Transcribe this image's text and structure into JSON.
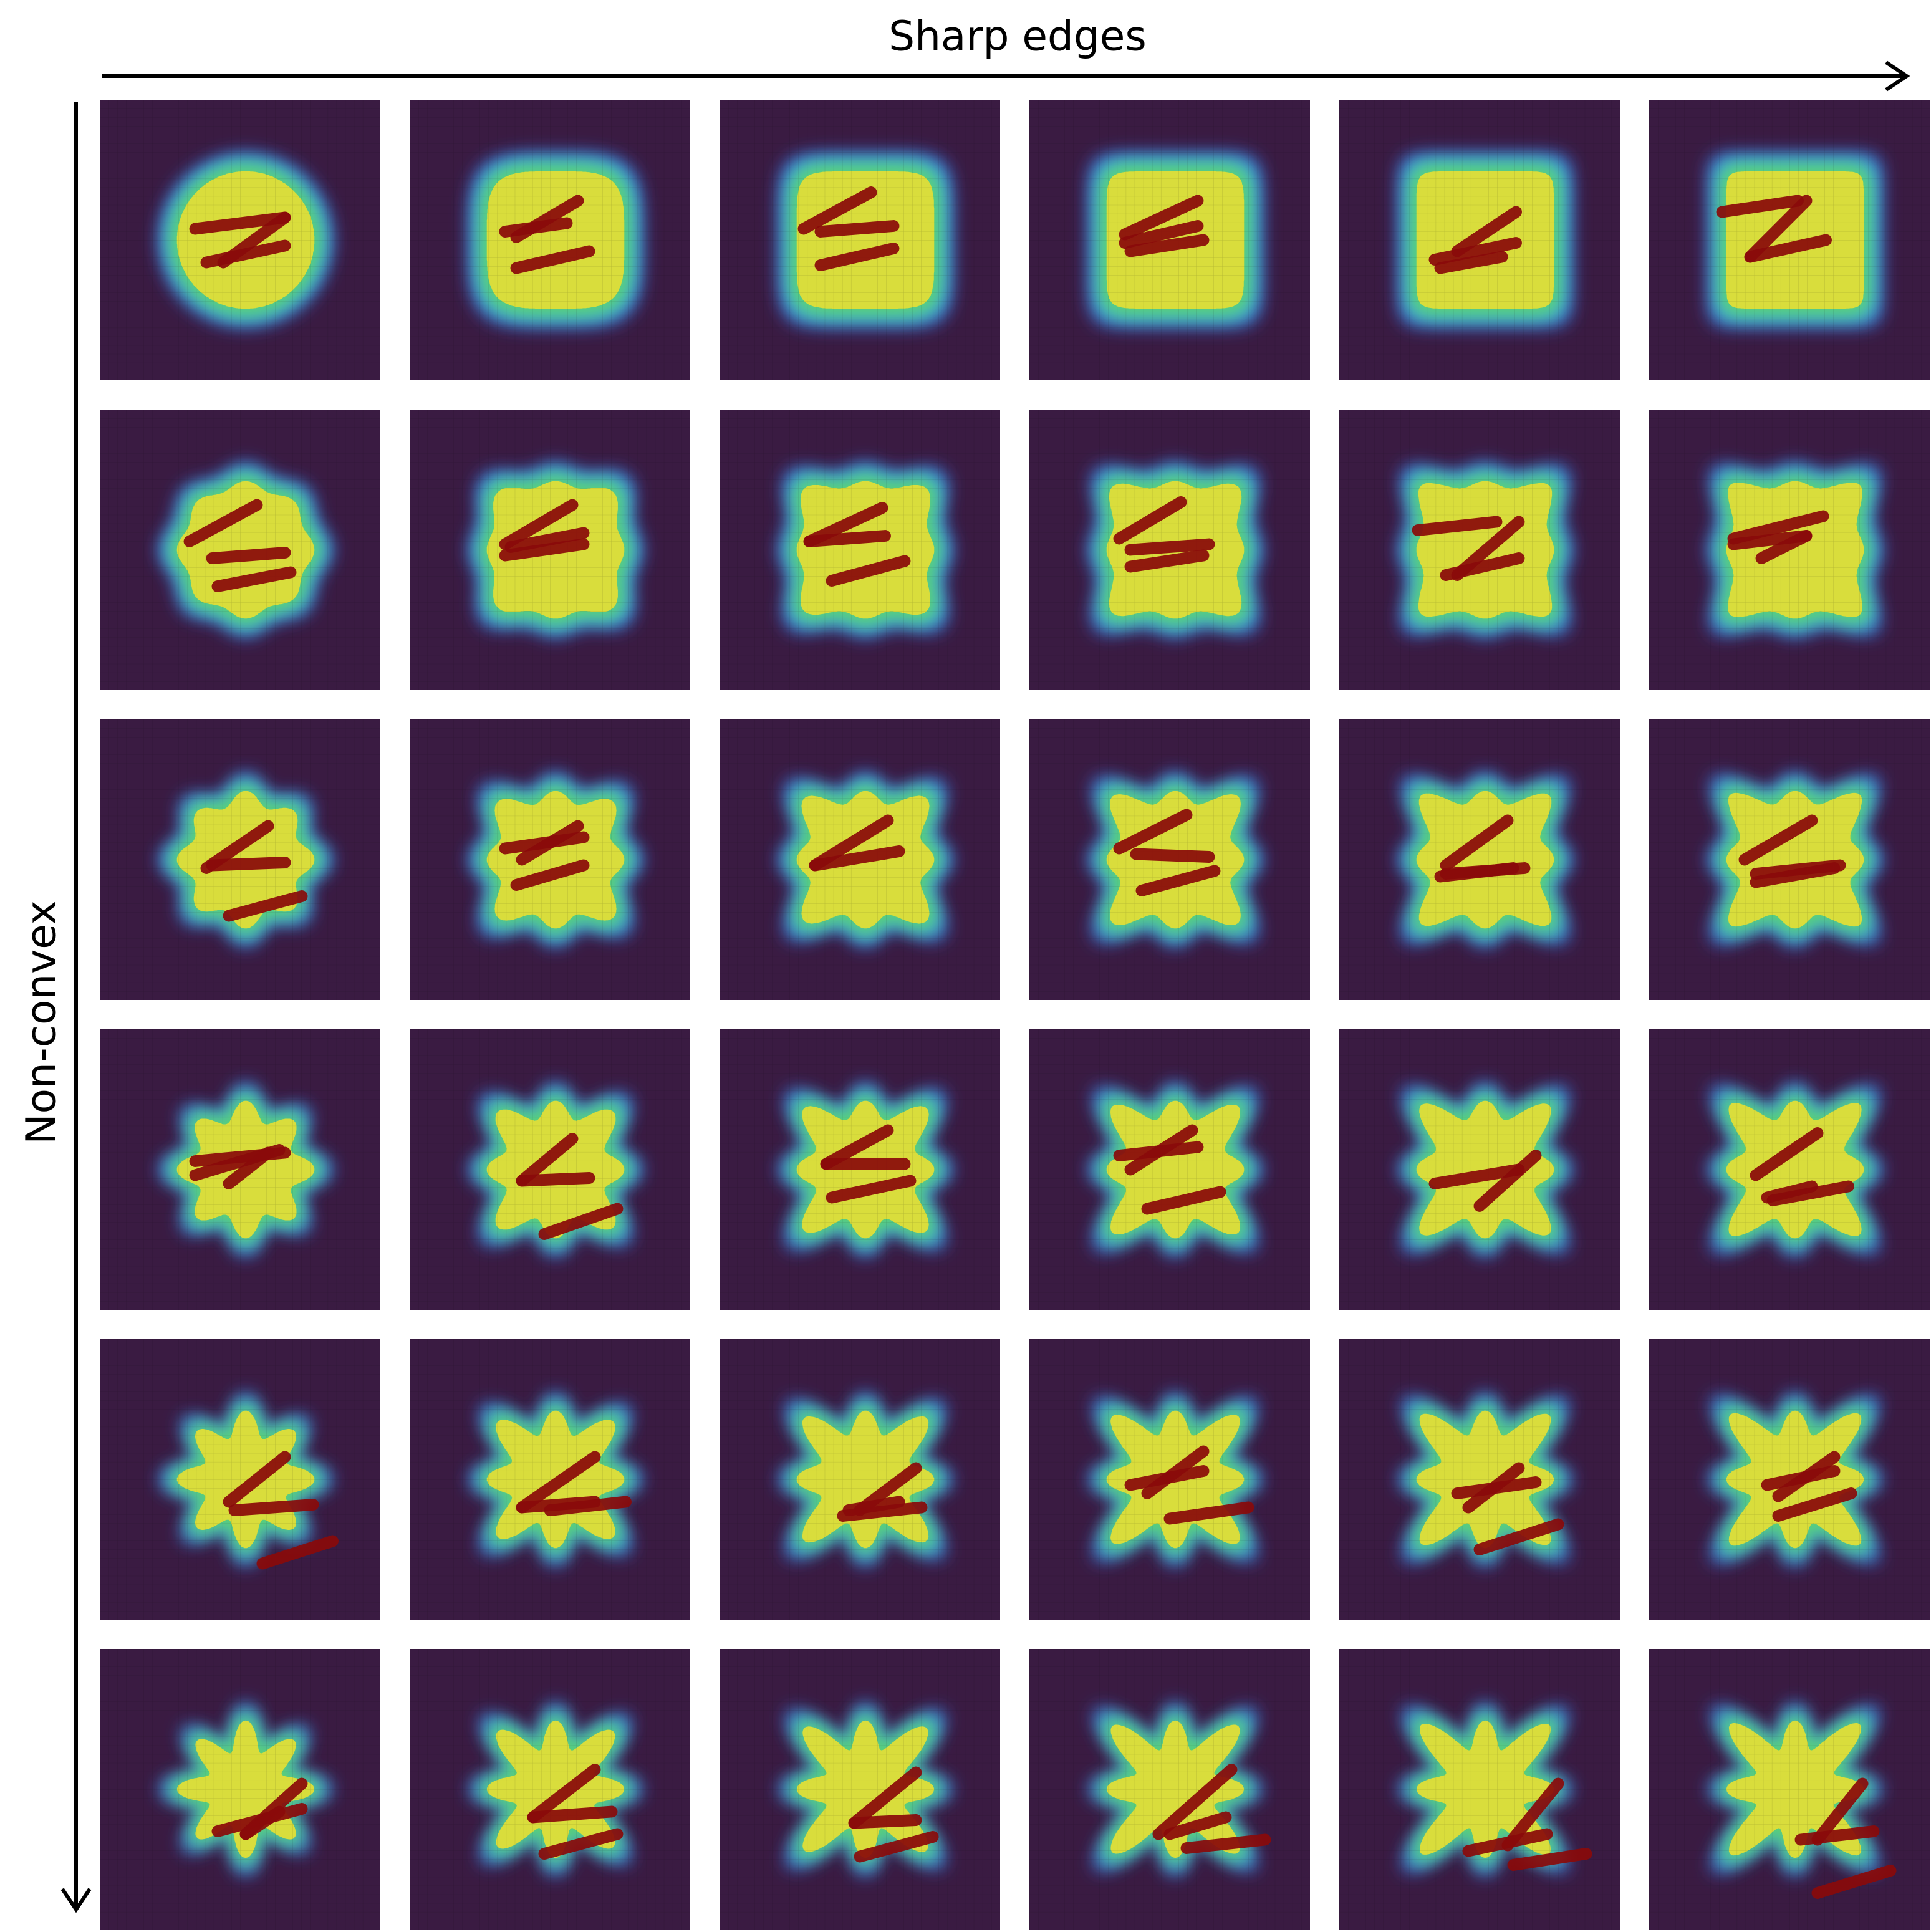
{
  "axes": {
    "x_label": "Sharp edges",
    "y_label": "Non-convex"
  },
  "colors": {
    "background": "#3a1b42",
    "grid_line": "#2a1230",
    "glow_blue": "#3a6bd8",
    "glow_cyan": "#3ec4cf",
    "glow_green": "#5fd16a",
    "shape_fill": "#d9dd3c",
    "shape_grid": "#a8a832",
    "stroke": "#8a0a0a",
    "axis": "#000000"
  },
  "grid": {
    "rows": 6,
    "columns": 6,
    "row_axis": "Non-convex",
    "column_axis": "Sharp edges"
  },
  "panels": [
    {
      "row": 0,
      "col": 0,
      "roughness": 0.0,
      "bumps": 0,
      "segments": [
        [
          0.34,
          0.46,
          0.66,
          0.42
        ],
        [
          0.66,
          0.42,
          0.44,
          0.58
        ],
        [
          0.38,
          0.58,
          0.66,
          0.52
        ]
      ]
    },
    {
      "row": 0,
      "col": 1,
      "roughness": 0.2,
      "bumps": 0,
      "segments": [
        [
          0.34,
          0.47,
          0.56,
          0.44
        ],
        [
          0.38,
          0.49,
          0.6,
          0.36
        ],
        [
          0.38,
          0.6,
          0.64,
          0.54
        ]
      ]
    },
    {
      "row": 0,
      "col": 2,
      "roughness": 0.4,
      "bumps": 0,
      "segments": [
        [
          0.3,
          0.46,
          0.54,
          0.33
        ],
        [
          0.36,
          0.47,
          0.62,
          0.45
        ],
        [
          0.36,
          0.59,
          0.62,
          0.53
        ]
      ]
    },
    {
      "row": 0,
      "col": 3,
      "roughness": 0.6,
      "bumps": 0,
      "segments": [
        [
          0.34,
          0.48,
          0.6,
          0.36
        ],
        [
          0.34,
          0.51,
          0.6,
          0.45
        ],
        [
          0.36,
          0.54,
          0.62,
          0.5
        ]
      ]
    },
    {
      "row": 0,
      "col": 4,
      "roughness": 0.8,
      "bumps": 0,
      "segments": [
        [
          0.34,
          0.57,
          0.63,
          0.51
        ],
        [
          0.42,
          0.54,
          0.63,
          0.4
        ],
        [
          0.36,
          0.6,
          0.58,
          0.56
        ]
      ]
    },
    {
      "row": 0,
      "col": 5,
      "roughness": 1.0,
      "bumps": 0,
      "segments": [
        [
          0.26,
          0.4,
          0.53,
          0.36
        ],
        [
          0.36,
          0.56,
          0.63,
          0.5
        ],
        [
          0.36,
          0.56,
          0.56,
          0.36
        ]
      ]
    },
    {
      "row": 1,
      "col": 0,
      "roughness": 0.0,
      "bumps": 1,
      "segments": [
        [
          0.32,
          0.47,
          0.56,
          0.34
        ],
        [
          0.4,
          0.53,
          0.66,
          0.51
        ],
        [
          0.42,
          0.63,
          0.68,
          0.58
        ]
      ]
    },
    {
      "row": 1,
      "col": 1,
      "roughness": 0.2,
      "bumps": 1,
      "segments": [
        [
          0.34,
          0.48,
          0.58,
          0.34
        ],
        [
          0.34,
          0.52,
          0.62,
          0.48
        ],
        [
          0.36,
          0.49,
          0.62,
          0.44
        ]
      ]
    },
    {
      "row": 1,
      "col": 2,
      "roughness": 0.4,
      "bumps": 1,
      "segments": [
        [
          0.32,
          0.47,
          0.58,
          0.35
        ],
        [
          0.32,
          0.47,
          0.59,
          0.45
        ],
        [
          0.4,
          0.61,
          0.66,
          0.54
        ]
      ]
    },
    {
      "row": 1,
      "col": 3,
      "roughness": 0.6,
      "bumps": 1,
      "segments": [
        [
          0.32,
          0.46,
          0.54,
          0.33
        ],
        [
          0.36,
          0.5,
          0.64,
          0.48
        ],
        [
          0.36,
          0.56,
          0.62,
          0.52
        ]
      ]
    },
    {
      "row": 1,
      "col": 4,
      "roughness": 0.8,
      "bumps": 1,
      "segments": [
        [
          0.28,
          0.43,
          0.56,
          0.4
        ],
        [
          0.38,
          0.59,
          0.64,
          0.53
        ],
        [
          0.42,
          0.59,
          0.64,
          0.4
        ]
      ]
    },
    {
      "row": 1,
      "col": 5,
      "roughness": 1.0,
      "bumps": 1,
      "segments": [
        [
          0.3,
          0.48,
          0.56,
          0.45
        ],
        [
          0.3,
          0.46,
          0.62,
          0.38
        ],
        [
          0.4,
          0.53,
          0.56,
          0.45
        ]
      ]
    },
    {
      "row": 2,
      "col": 0,
      "roughness": 0.0,
      "bumps": 2,
      "segments": [
        [
          0.38,
          0.53,
          0.6,
          0.38
        ],
        [
          0.4,
          0.52,
          0.66,
          0.51
        ],
        [
          0.46,
          0.7,
          0.72,
          0.63
        ]
      ]
    },
    {
      "row": 2,
      "col": 1,
      "roughness": 0.2,
      "bumps": 2,
      "segments": [
        [
          0.34,
          0.46,
          0.62,
          0.42
        ],
        [
          0.4,
          0.5,
          0.6,
          0.38
        ],
        [
          0.38,
          0.59,
          0.62,
          0.52
        ]
      ]
    },
    {
      "row": 2,
      "col": 2,
      "roughness": 0.4,
      "bumps": 2,
      "segments": [
        [
          0.34,
          0.52,
          0.6,
          0.36
        ],
        [
          0.34,
          0.52,
          0.64,
          0.47
        ]
      ]
    },
    {
      "row": 2,
      "col": 3,
      "roughness": 0.6,
      "bumps": 2,
      "segments": [
        [
          0.32,
          0.46,
          0.56,
          0.34
        ],
        [
          0.38,
          0.48,
          0.64,
          0.49
        ],
        [
          0.4,
          0.61,
          0.66,
          0.54
        ]
      ]
    },
    {
      "row": 2,
      "col": 4,
      "roughness": 0.8,
      "bumps": 2,
      "segments": [
        [
          0.38,
          0.52,
          0.6,
          0.36
        ],
        [
          0.38,
          0.55,
          0.66,
          0.53
        ],
        [
          0.36,
          0.56,
          0.62,
          0.53
        ]
      ]
    },
    {
      "row": 2,
      "col": 5,
      "roughness": 1.0,
      "bumps": 2,
      "segments": [
        [
          0.34,
          0.5,
          0.58,
          0.36
        ],
        [
          0.38,
          0.55,
          0.68,
          0.52
        ],
        [
          0.38,
          0.58,
          0.66,
          0.53
        ]
      ]
    },
    {
      "row": 3,
      "col": 0,
      "roughness": 0.0,
      "bumps": 3,
      "segments": [
        [
          0.34,
          0.47,
          0.66,
          0.44
        ],
        [
          0.34,
          0.52,
          0.64,
          0.43
        ],
        [
          0.46,
          0.55,
          0.6,
          0.44
        ]
      ]
    },
    {
      "row": 3,
      "col": 1,
      "roughness": 0.2,
      "bumps": 3,
      "segments": [
        [
          0.4,
          0.54,
          0.58,
          0.39
        ],
        [
          0.4,
          0.54,
          0.64,
          0.53
        ],
        [
          0.48,
          0.73,
          0.74,
          0.64
        ]
      ]
    },
    {
      "row": 3,
      "col": 2,
      "roughness": 0.4,
      "bumps": 3,
      "segments": [
        [
          0.38,
          0.48,
          0.6,
          0.36
        ],
        [
          0.38,
          0.48,
          0.66,
          0.48
        ],
        [
          0.4,
          0.6,
          0.68,
          0.54
        ]
      ]
    },
    {
      "row": 3,
      "col": 3,
      "roughness": 0.6,
      "bumps": 3,
      "segments": [
        [
          0.32,
          0.45,
          0.6,
          0.42
        ],
        [
          0.36,
          0.5,
          0.58,
          0.36
        ],
        [
          0.42,
          0.64,
          0.68,
          0.58
        ]
      ]
    },
    {
      "row": 3,
      "col": 4,
      "roughness": 0.8,
      "bumps": 3,
      "segments": [
        [
          0.34,
          0.55,
          0.64,
          0.5
        ],
        [
          0.5,
          0.63,
          0.7,
          0.45
        ]
      ]
    },
    {
      "row": 3,
      "col": 5,
      "roughness": 1.0,
      "bumps": 3,
      "segments": [
        [
          0.38,
          0.52,
          0.6,
          0.37
        ],
        [
          0.44,
          0.61,
          0.71,
          0.56
        ],
        [
          0.42,
          0.6,
          0.58,
          0.56
        ]
      ]
    },
    {
      "row": 4,
      "col": 0,
      "roughness": 0.0,
      "bumps": 4,
      "segments": [
        [
          0.46,
          0.58,
          0.66,
          0.42
        ],
        [
          0.48,
          0.61,
          0.76,
          0.59
        ],
        [
          0.58,
          0.8,
          0.83,
          0.72
        ]
      ]
    },
    {
      "row": 4,
      "col": 1,
      "roughness": 0.2,
      "bumps": 4,
      "segments": [
        [
          0.4,
          0.6,
          0.66,
          0.42
        ],
        [
          0.4,
          0.6,
          0.66,
          0.58
        ],
        [
          0.5,
          0.61,
          0.77,
          0.58
        ]
      ]
    },
    {
      "row": 4,
      "col": 2,
      "roughness": 0.4,
      "bumps": 4,
      "segments": [
        [
          0.44,
          0.63,
          0.72,
          0.6
        ],
        [
          0.5,
          0.61,
          0.7,
          0.46
        ],
        [
          0.46,
          0.61,
          0.64,
          0.58
        ]
      ]
    },
    {
      "row": 4,
      "col": 3,
      "roughness": 0.6,
      "bumps": 4,
      "segments": [
        [
          0.36,
          0.52,
          0.62,
          0.47
        ],
        [
          0.42,
          0.55,
          0.62,
          0.4
        ],
        [
          0.5,
          0.64,
          0.78,
          0.6
        ]
      ]
    },
    {
      "row": 4,
      "col": 4,
      "roughness": 0.8,
      "bumps": 4,
      "segments": [
        [
          0.42,
          0.55,
          0.7,
          0.51
        ],
        [
          0.46,
          0.6,
          0.64,
          0.46
        ],
        [
          0.5,
          0.75,
          0.78,
          0.66
        ]
      ]
    },
    {
      "row": 4,
      "col": 5,
      "roughness": 1.0,
      "bumps": 4,
      "segments": [
        [
          0.42,
          0.52,
          0.66,
          0.47
        ],
        [
          0.46,
          0.56,
          0.66,
          0.42
        ],
        [
          0.46,
          0.63,
          0.72,
          0.55
        ]
      ]
    },
    {
      "row": 5,
      "col": 0,
      "roughness": 0.0,
      "bumps": 5,
      "segments": [
        [
          0.42,
          0.65,
          0.72,
          0.57
        ],
        [
          0.52,
          0.66,
          0.72,
          0.48
        ],
        [
          0.52,
          0.66,
          0.64,
          0.58
        ]
      ]
    },
    {
      "row": 5,
      "col": 1,
      "roughness": 0.2,
      "bumps": 5,
      "segments": [
        [
          0.44,
          0.6,
          0.66,
          0.43
        ],
        [
          0.44,
          0.6,
          0.72,
          0.58
        ],
        [
          0.48,
          0.73,
          0.74,
          0.66
        ]
      ]
    },
    {
      "row": 5,
      "col": 2,
      "roughness": 0.4,
      "bumps": 5,
      "segments": [
        [
          0.48,
          0.62,
          0.7,
          0.44
        ],
        [
          0.48,
          0.62,
          0.7,
          0.61
        ],
        [
          0.5,
          0.74,
          0.76,
          0.67
        ]
      ]
    },
    {
      "row": 5,
      "col": 3,
      "roughness": 0.6,
      "bumps": 5,
      "segments": [
        [
          0.46,
          0.66,
          0.72,
          0.43
        ],
        [
          0.5,
          0.66,
          0.7,
          0.6
        ],
        [
          0.56,
          0.71,
          0.84,
          0.68
        ]
      ]
    },
    {
      "row": 5,
      "col": 4,
      "roughness": 0.8,
      "bumps": 5,
      "segments": [
        [
          0.46,
          0.72,
          0.74,
          0.66
        ],
        [
          0.6,
          0.7,
          0.78,
          0.48
        ],
        [
          0.62,
          0.77,
          0.88,
          0.73
        ]
      ]
    },
    {
      "row": 5,
      "col": 5,
      "roughness": 1.0,
      "bumps": 5,
      "segments": [
        [
          0.54,
          0.68,
          0.8,
          0.65
        ],
        [
          0.6,
          0.68,
          0.76,
          0.48
        ],
        [
          0.6,
          0.87,
          0.86,
          0.79
        ]
      ]
    }
  ]
}
